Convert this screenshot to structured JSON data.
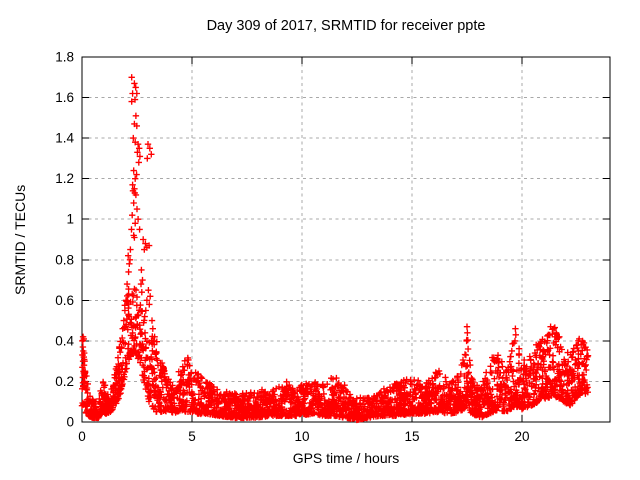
{
  "chart_data": {
    "type": "scatter",
    "title": "Day 309 of 2017, SRMTID for receiver ppte",
    "xlabel": "GPS time / hours",
    "ylabel": "SRMTID / TECUs",
    "xlim": [
      0,
      24
    ],
    "ylim": [
      0,
      1.8
    ],
    "xticks": [
      0,
      5,
      10,
      15,
      20
    ],
    "xtick_labels": [
      "0",
      "5",
      "10",
      "15",
      "20"
    ],
    "yticks": [
      0,
      0.2,
      0.4,
      0.6,
      0.8,
      1,
      1.2,
      1.4,
      1.6,
      1.8
    ],
    "ytick_labels": [
      "0",
      "0.2",
      "0.4",
      "0.6",
      "0.8",
      "1",
      "1.2",
      "1.4",
      "1.6",
      "1.8"
    ],
    "grid": true,
    "legend": null,
    "marker": {
      "symbol": "plus",
      "color": "#ff0000",
      "size": 7
    },
    "axis_color": "#000000",
    "grid_color": "#a8a8a8",
    "background": "#ffffff",
    "x_data_range": [
      0,
      23
    ],
    "samples_per_hour": 110,
    "seed": 309,
    "envelope": [
      [
        0.0,
        0.08,
        0.42
      ],
      [
        0.15,
        0.05,
        0.35
      ],
      [
        0.3,
        0.03,
        0.2
      ],
      [
        0.5,
        0.02,
        0.12
      ],
      [
        0.75,
        0.02,
        0.1
      ],
      [
        0.95,
        0.05,
        0.22
      ],
      [
        1.1,
        0.04,
        0.16
      ],
      [
        1.3,
        0.05,
        0.14
      ],
      [
        1.5,
        0.08,
        0.25
      ],
      [
        1.7,
        0.12,
        0.4
      ],
      [
        1.9,
        0.2,
        0.55
      ],
      [
        2.1,
        0.3,
        0.68
      ],
      [
        2.4,
        0.35,
        0.68
      ],
      [
        2.65,
        0.28,
        0.6
      ],
      [
        2.9,
        0.15,
        0.48
      ],
      [
        3.1,
        0.08,
        0.45
      ],
      [
        3.35,
        0.05,
        0.42
      ],
      [
        3.6,
        0.05,
        0.3
      ],
      [
        3.9,
        0.05,
        0.26
      ],
      [
        4.2,
        0.04,
        0.16
      ],
      [
        4.5,
        0.06,
        0.32
      ],
      [
        4.75,
        0.05,
        0.33
      ],
      [
        5.0,
        0.05,
        0.3
      ],
      [
        5.3,
        0.04,
        0.25
      ],
      [
        5.7,
        0.04,
        0.2
      ],
      [
        6.2,
        0.03,
        0.16
      ],
      [
        7.0,
        0.02,
        0.14
      ],
      [
        7.8,
        0.02,
        0.15
      ],
      [
        8.6,
        0.03,
        0.17
      ],
      [
        9.3,
        0.03,
        0.21
      ],
      [
        9.8,
        0.03,
        0.17
      ],
      [
        10.4,
        0.04,
        0.21
      ],
      [
        11.0,
        0.03,
        0.19
      ],
      [
        11.5,
        0.03,
        0.23
      ],
      [
        12.0,
        0.02,
        0.18
      ],
      [
        12.5,
        0.01,
        0.12
      ],
      [
        13.0,
        0.02,
        0.12
      ],
      [
        13.5,
        0.03,
        0.16
      ],
      [
        14.2,
        0.03,
        0.19
      ],
      [
        15.0,
        0.04,
        0.22
      ],
      [
        15.6,
        0.04,
        0.19
      ],
      [
        16.2,
        0.05,
        0.26
      ],
      [
        16.7,
        0.04,
        0.2
      ],
      [
        17.2,
        0.05,
        0.25
      ],
      [
        17.5,
        0.08,
        0.47
      ],
      [
        17.7,
        0.04,
        0.22
      ],
      [
        18.1,
        0.02,
        0.18
      ],
      [
        18.5,
        0.04,
        0.3
      ],
      [
        18.9,
        0.06,
        0.36
      ],
      [
        19.3,
        0.05,
        0.25
      ],
      [
        19.7,
        0.08,
        0.45
      ],
      [
        20.0,
        0.06,
        0.3
      ],
      [
        20.4,
        0.08,
        0.35
      ],
      [
        20.8,
        0.1,
        0.4
      ],
      [
        21.2,
        0.12,
        0.46
      ],
      [
        21.6,
        0.12,
        0.47
      ],
      [
        21.9,
        0.1,
        0.36
      ],
      [
        22.2,
        0.08,
        0.33
      ],
      [
        22.5,
        0.12,
        0.42
      ],
      [
        22.8,
        0.15,
        0.4
      ],
      [
        23.0,
        0.12,
        0.35
      ]
    ],
    "spike_points": [
      [
        0.02,
        0.4
      ],
      [
        0.05,
        0.42
      ],
      [
        0.04,
        0.37
      ],
      [
        0.08,
        0.41
      ],
      [
        0.03,
        0.33
      ],
      [
        0.06,
        0.35
      ],
      [
        0.05,
        0.3
      ],
      [
        0.08,
        0.32
      ],
      [
        0.02,
        0.27
      ],
      [
        0.07,
        0.25
      ],
      [
        0.09,
        0.28
      ],
      [
        0.04,
        0.22
      ],
      [
        0.12,
        0.3
      ],
      [
        0.1,
        0.34
      ],
      [
        0.06,
        0.18
      ],
      [
        0.1,
        0.2
      ],
      [
        0.13,
        0.24
      ],
      [
        1.85,
        0.46
      ],
      [
        1.9,
        0.5
      ],
      [
        1.95,
        0.55
      ],
      [
        2.0,
        0.6
      ],
      [
        2.05,
        0.68
      ],
      [
        2.12,
        0.74
      ],
      [
        2.18,
        0.8
      ],
      [
        2.1,
        0.82
      ],
      [
        2.15,
        0.78
      ],
      [
        2.2,
        0.85
      ],
      [
        2.26,
        1.7
      ],
      [
        2.38,
        1.67
      ],
      [
        2.44,
        1.65
      ],
      [
        2.3,
        1.62
      ],
      [
        2.49,
        1.62
      ],
      [
        2.41,
        1.59
      ],
      [
        2.26,
        1.58
      ],
      [
        2.45,
        1.51
      ],
      [
        2.38,
        1.47
      ],
      [
        2.49,
        1.46
      ],
      [
        2.33,
        1.4
      ],
      [
        2.42,
        1.38
      ],
      [
        2.55,
        1.37
      ],
      [
        2.6,
        1.35
      ],
      [
        2.52,
        1.33
      ],
      [
        2.63,
        1.31
      ],
      [
        2.58,
        1.28
      ],
      [
        3.0,
        1.37
      ],
      [
        3.08,
        1.35
      ],
      [
        3.15,
        1.32
      ],
      [
        2.97,
        1.3
      ],
      [
        2.35,
        1.24
      ],
      [
        2.48,
        1.22
      ],
      [
        2.42,
        1.2
      ],
      [
        2.3,
        1.17
      ],
      [
        2.38,
        1.15
      ],
      [
        2.32,
        1.14
      ],
      [
        2.4,
        1.13
      ],
      [
        2.45,
        1.12
      ],
      [
        2.35,
        1.08
      ],
      [
        2.5,
        1.05
      ],
      [
        2.28,
        1.02
      ],
      [
        2.55,
        1.0
      ],
      [
        2.42,
        0.98
      ],
      [
        2.25,
        0.95
      ],
      [
        2.35,
        0.92
      ],
      [
        2.62,
        0.95
      ],
      [
        2.38,
        0.91
      ],
      [
        2.78,
        0.9
      ],
      [
        2.88,
        0.88
      ],
      [
        2.95,
        0.86
      ],
      [
        2.83,
        0.85
      ],
      [
        3.05,
        0.87
      ],
      [
        2.7,
        0.75
      ],
      [
        2.75,
        0.7
      ],
      [
        2.68,
        0.68
      ],
      [
        2.72,
        0.64
      ],
      [
        3.02,
        0.65
      ],
      [
        3.1,
        0.62
      ],
      [
        3.06,
        0.58
      ],
      [
        2.95,
        0.6
      ],
      [
        2.9,
        0.55
      ],
      [
        2.85,
        0.52
      ],
      [
        3.18,
        0.5
      ],
      [
        3.22,
        0.46
      ],
      [
        3.3,
        0.42
      ],
      [
        17.5,
        0.47
      ],
      [
        17.52,
        0.44
      ],
      [
        17.48,
        0.4
      ],
      [
        17.55,
        0.36
      ],
      [
        17.45,
        0.33
      ],
      [
        19.7,
        0.46
      ],
      [
        19.72,
        0.43
      ],
      [
        19.68,
        0.4
      ],
      [
        21.3,
        0.47
      ],
      [
        21.45,
        0.46
      ],
      [
        21.55,
        0.44
      ],
      [
        21.2,
        0.43
      ],
      [
        21.6,
        0.42
      ],
      [
        22.6,
        0.41
      ],
      [
        22.75,
        0.4
      ],
      [
        22.5,
        0.38
      ]
    ]
  }
}
